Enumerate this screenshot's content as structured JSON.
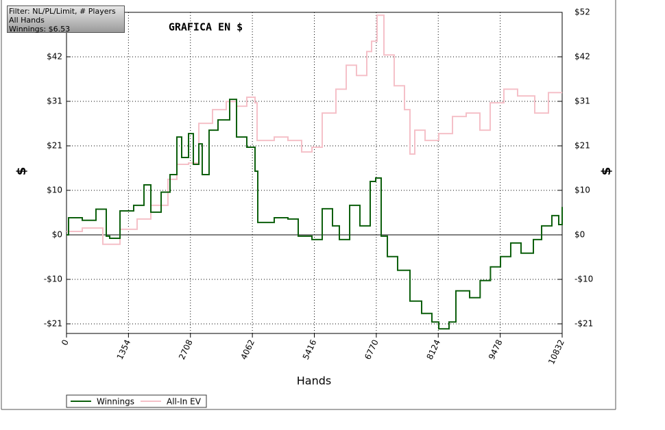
{
  "filter_box": {
    "lines": [
      "Filter: NL/PL/Limit, # Players",
      "All Hands",
      "Winnings: $6.53"
    ]
  },
  "chart_data": {
    "type": "line",
    "title": "GRAFICA EN  $",
    "xlabel": "Hands",
    "ylabel": "$",
    "y2label": "$",
    "xlim": [
      0,
      10832
    ],
    "xticks": [
      0,
      1354,
      2708,
      4062,
      5416,
      6770,
      8124,
      9478,
      10832
    ],
    "ylim": [
      -23.08,
      52.08
    ],
    "yticks": [
      {
        "value": 52.08,
        "label": "$52"
      },
      {
        "value": 41.67,
        "label": "$42"
      },
      {
        "value": 31.25,
        "label": "$31"
      },
      {
        "value": 20.83,
        "label": "$21"
      },
      {
        "value": 10.42,
        "label": "$10"
      },
      {
        "value": 0,
        "label": "$0"
      },
      {
        "value": -10.42,
        "label": "-$10"
      },
      {
        "value": -20.83,
        "label": "-$21"
      }
    ],
    "grid": true,
    "legend": "bottom-left",
    "series": [
      {
        "name": "Winnings",
        "color": "#0b5e0b",
        "x": [
          0,
          45,
          345,
          644,
          869,
          944,
          1169,
          1468,
          1693,
          1843,
          2068,
          2262,
          2412,
          2517,
          2667,
          2772,
          2892,
          2966,
          3116,
          3311,
          3566,
          3716,
          3940,
          4120,
          4180,
          4540,
          4839,
          5064,
          5364,
          5588,
          5813,
          5963,
          6188,
          6412,
          6637,
          6757,
          6877,
          7012,
          7236,
          7506,
          7761,
          7985,
          8135,
          8360,
          8510,
          8810,
          9039,
          9265,
          9484,
          9708,
          9933,
          10203,
          10383,
          10607,
          10757,
          10832
        ],
        "values": [
          0,
          4,
          3.4,
          6,
          -0.3,
          -0.8,
          5.6,
          6.9,
          11.7,
          5.3,
          10,
          14.1,
          22.9,
          18.1,
          23.7,
          16.5,
          21.3,
          14.1,
          24.5,
          26.9,
          31.7,
          22.9,
          20.5,
          14.9,
          2.9,
          4,
          3.7,
          -0.3,
          -1.1,
          6.1,
          2.1,
          -1.1,
          6.9,
          2.1,
          12.5,
          13.3,
          -0.3,
          -5.1,
          -8.3,
          -15.5,
          -18.4,
          -20.4,
          -22,
          -20.4,
          -13.1,
          -14.7,
          -10.7,
          -7.5,
          -5.1,
          -1.9,
          -4.3,
          -1.1,
          2.1,
          4.5,
          2.4,
          6.53
        ]
      },
      {
        "name": "All-In EV",
        "color": "#f5c0c8",
        "x": [
          0,
          345,
          794,
          1169,
          1543,
          1843,
          2217,
          2412,
          2667,
          2892,
          3191,
          3491,
          3716,
          3940,
          4120,
          4165,
          4540,
          4839,
          5139,
          5364,
          5588,
          5888,
          6113,
          6337,
          6562,
          6667,
          6787,
          6937,
          7161,
          7386,
          7506,
          7611,
          7836,
          8135,
          8435,
          8735,
          9034,
          9259,
          9558,
          9858,
          10233,
          10532,
          10832
        ],
        "values": [
          0.8,
          1.6,
          -2.2,
          1.3,
          3.7,
          6.9,
          13,
          16.5,
          16.8,
          26.1,
          29.3,
          31.2,
          30.1,
          32.2,
          30.9,
          22.1,
          22.9,
          22.1,
          19.4,
          20.5,
          28.5,
          34.1,
          39.7,
          37.3,
          42.9,
          45.3,
          51.4,
          42.1,
          34.9,
          29.3,
          18.9,
          24.5,
          22.1,
          23.7,
          27.7,
          28.5,
          24.5,
          30.9,
          34.1,
          32.5,
          28.5,
          33.3,
          33.3
        ]
      }
    ]
  }
}
